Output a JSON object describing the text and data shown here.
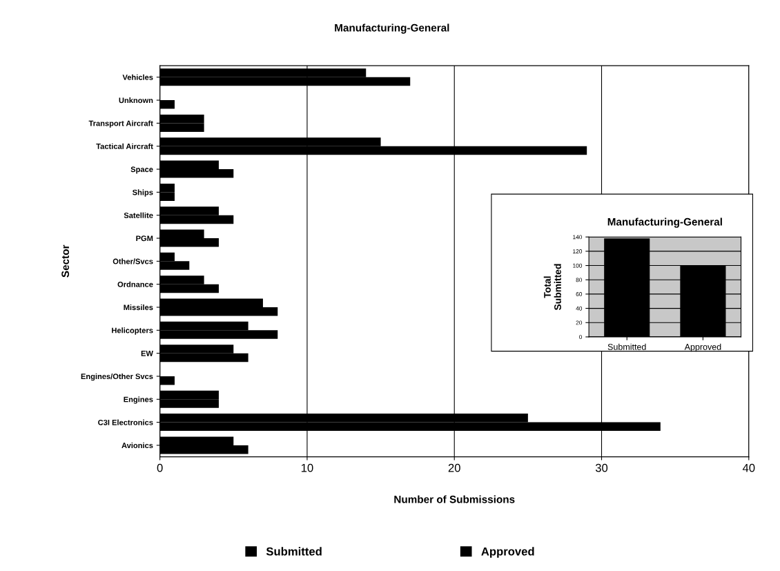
{
  "chart_data": [
    {
      "type": "bar",
      "orientation": "horizontal",
      "title": "Manufacturing-General",
      "xlabel": "Number of Submissions",
      "ylabel": "Sector",
      "categories": [
        "Vehicles",
        "Unknown",
        "Transport Aircraft",
        "Tactical Aircraft",
        "Space",
        "Ships",
        "Satellite",
        "PGM",
        "Other/Svcs",
        "Ordnance",
        "Missiles",
        "Helicopters",
        "EW",
        "Engines/Other Svcs",
        "Engines",
        "C3I Electronics",
        "Avionics"
      ],
      "series": [
        {
          "name": "Approved",
          "color": "#000000",
          "values": [
            14,
            0,
            3,
            15,
            4,
            1,
            4,
            3,
            1,
            3,
            7,
            6,
            5,
            0,
            4,
            25,
            5
          ]
        },
        {
          "name": "Submitted",
          "color": "#000000",
          "values": [
            17,
            1,
            3,
            29,
            5,
            1,
            5,
            4,
            2,
            4,
            8,
            8,
            6,
            1,
            4,
            34,
            6
          ]
        }
      ],
      "xlim": [
        0,
        40
      ],
      "xticks": [
        0,
        10,
        20,
        30,
        40
      ],
      "grid": "x",
      "legend": "bottom"
    },
    {
      "type": "bar",
      "title": "Manufacturing-General",
      "ylabel": "Total Submitted",
      "categories": [
        "Submitted",
        "Approved"
      ],
      "values": [
        138,
        100
      ],
      "color": "#000000",
      "ylim": [
        0,
        140
      ],
      "yticks": [
        0,
        20,
        40,
        60,
        80,
        100,
        120,
        140
      ],
      "grid": "y",
      "legend": false
    }
  ]
}
